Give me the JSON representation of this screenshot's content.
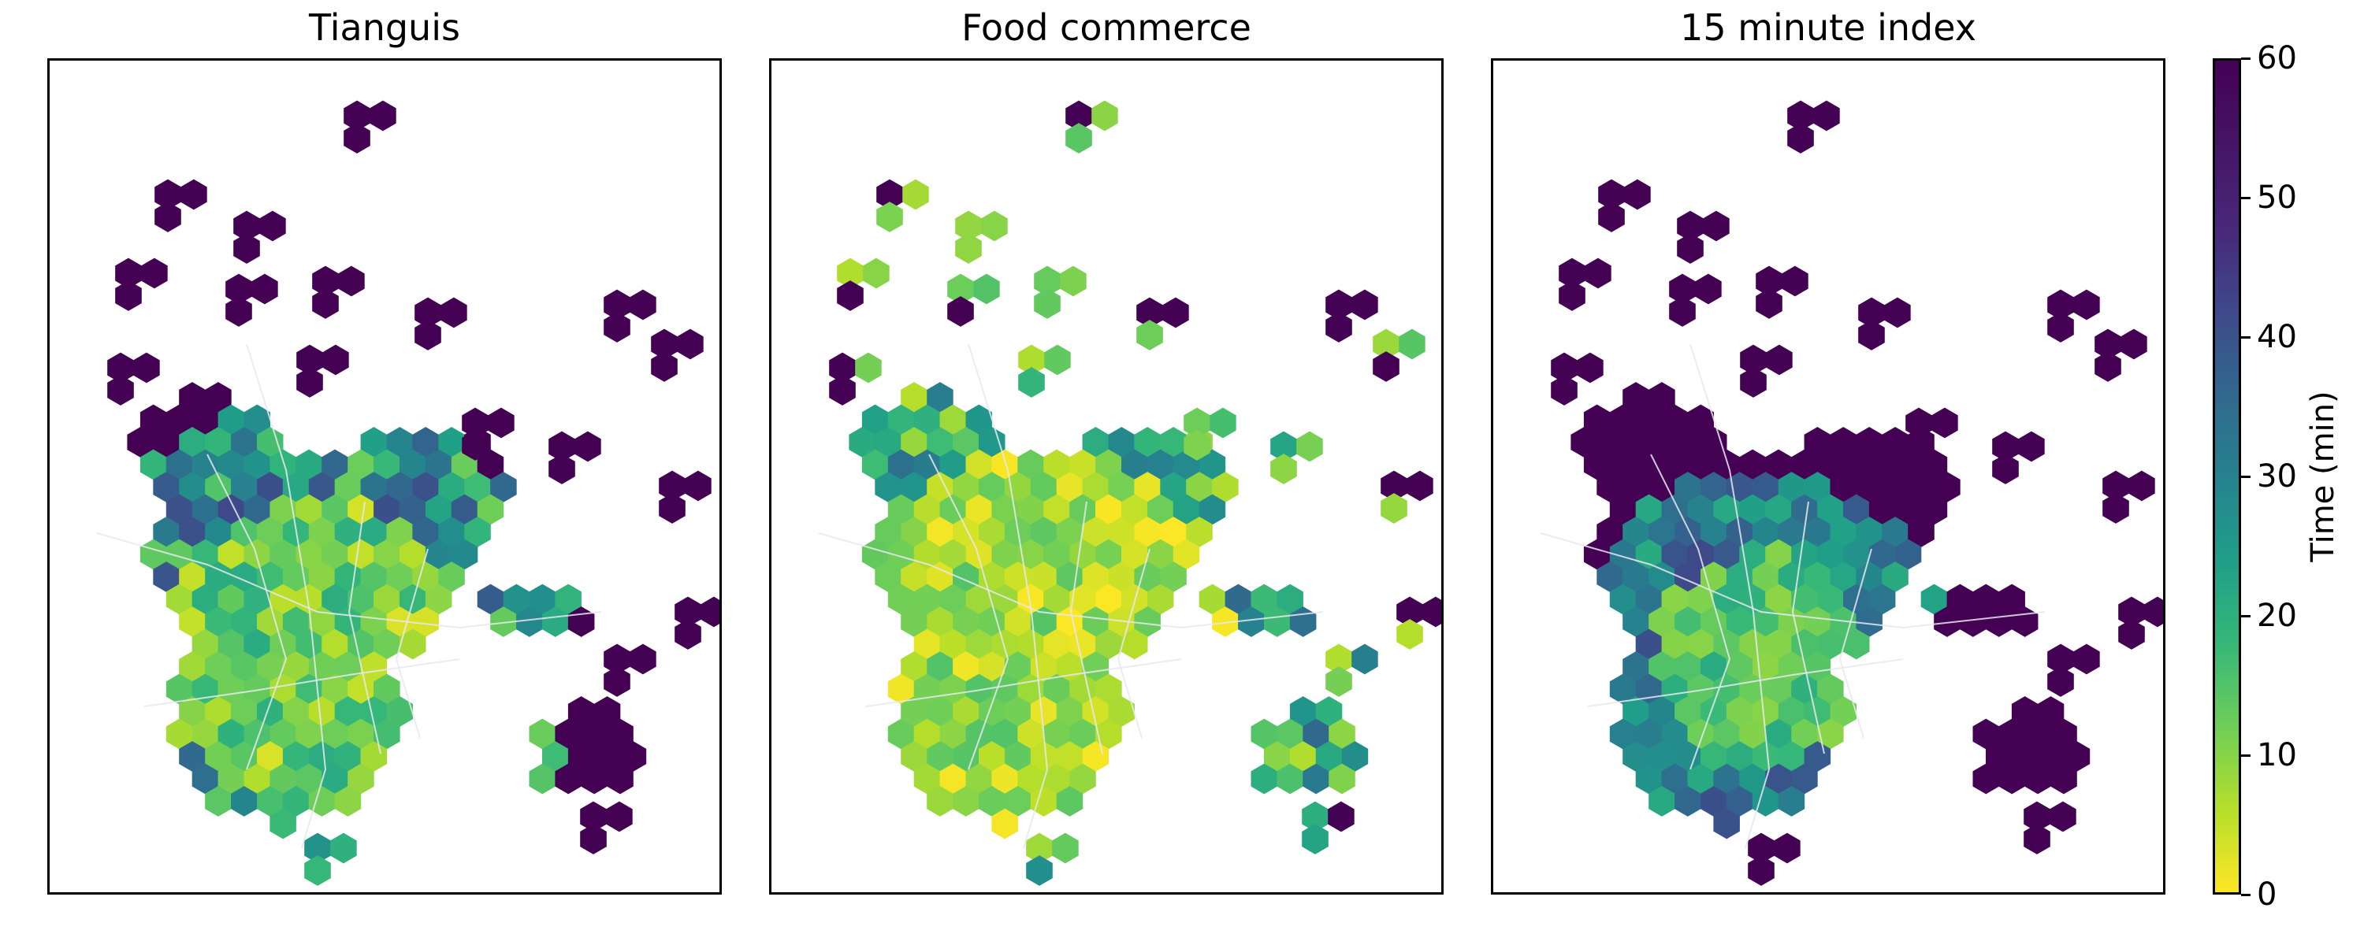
{
  "panels": [
    {
      "title": "Tianguis",
      "variant": "tianguis"
    },
    {
      "title": "Food commerce",
      "variant": "food"
    },
    {
      "title": "15 minute index",
      "variant": "index"
    }
  ],
  "colorbar": {
    "label": "Time (min)",
    "min": 0,
    "max": 60,
    "ticks": [
      "0",
      "10",
      "20",
      "30",
      "40",
      "50",
      "60"
    ],
    "colormap": "viridis (reversed: 0 = yellow, 60 = dark purple)"
  },
  "colors": {
    "low": "#fde725",
    "high": "#440154",
    "roads": "#e8e8f0"
  }
}
